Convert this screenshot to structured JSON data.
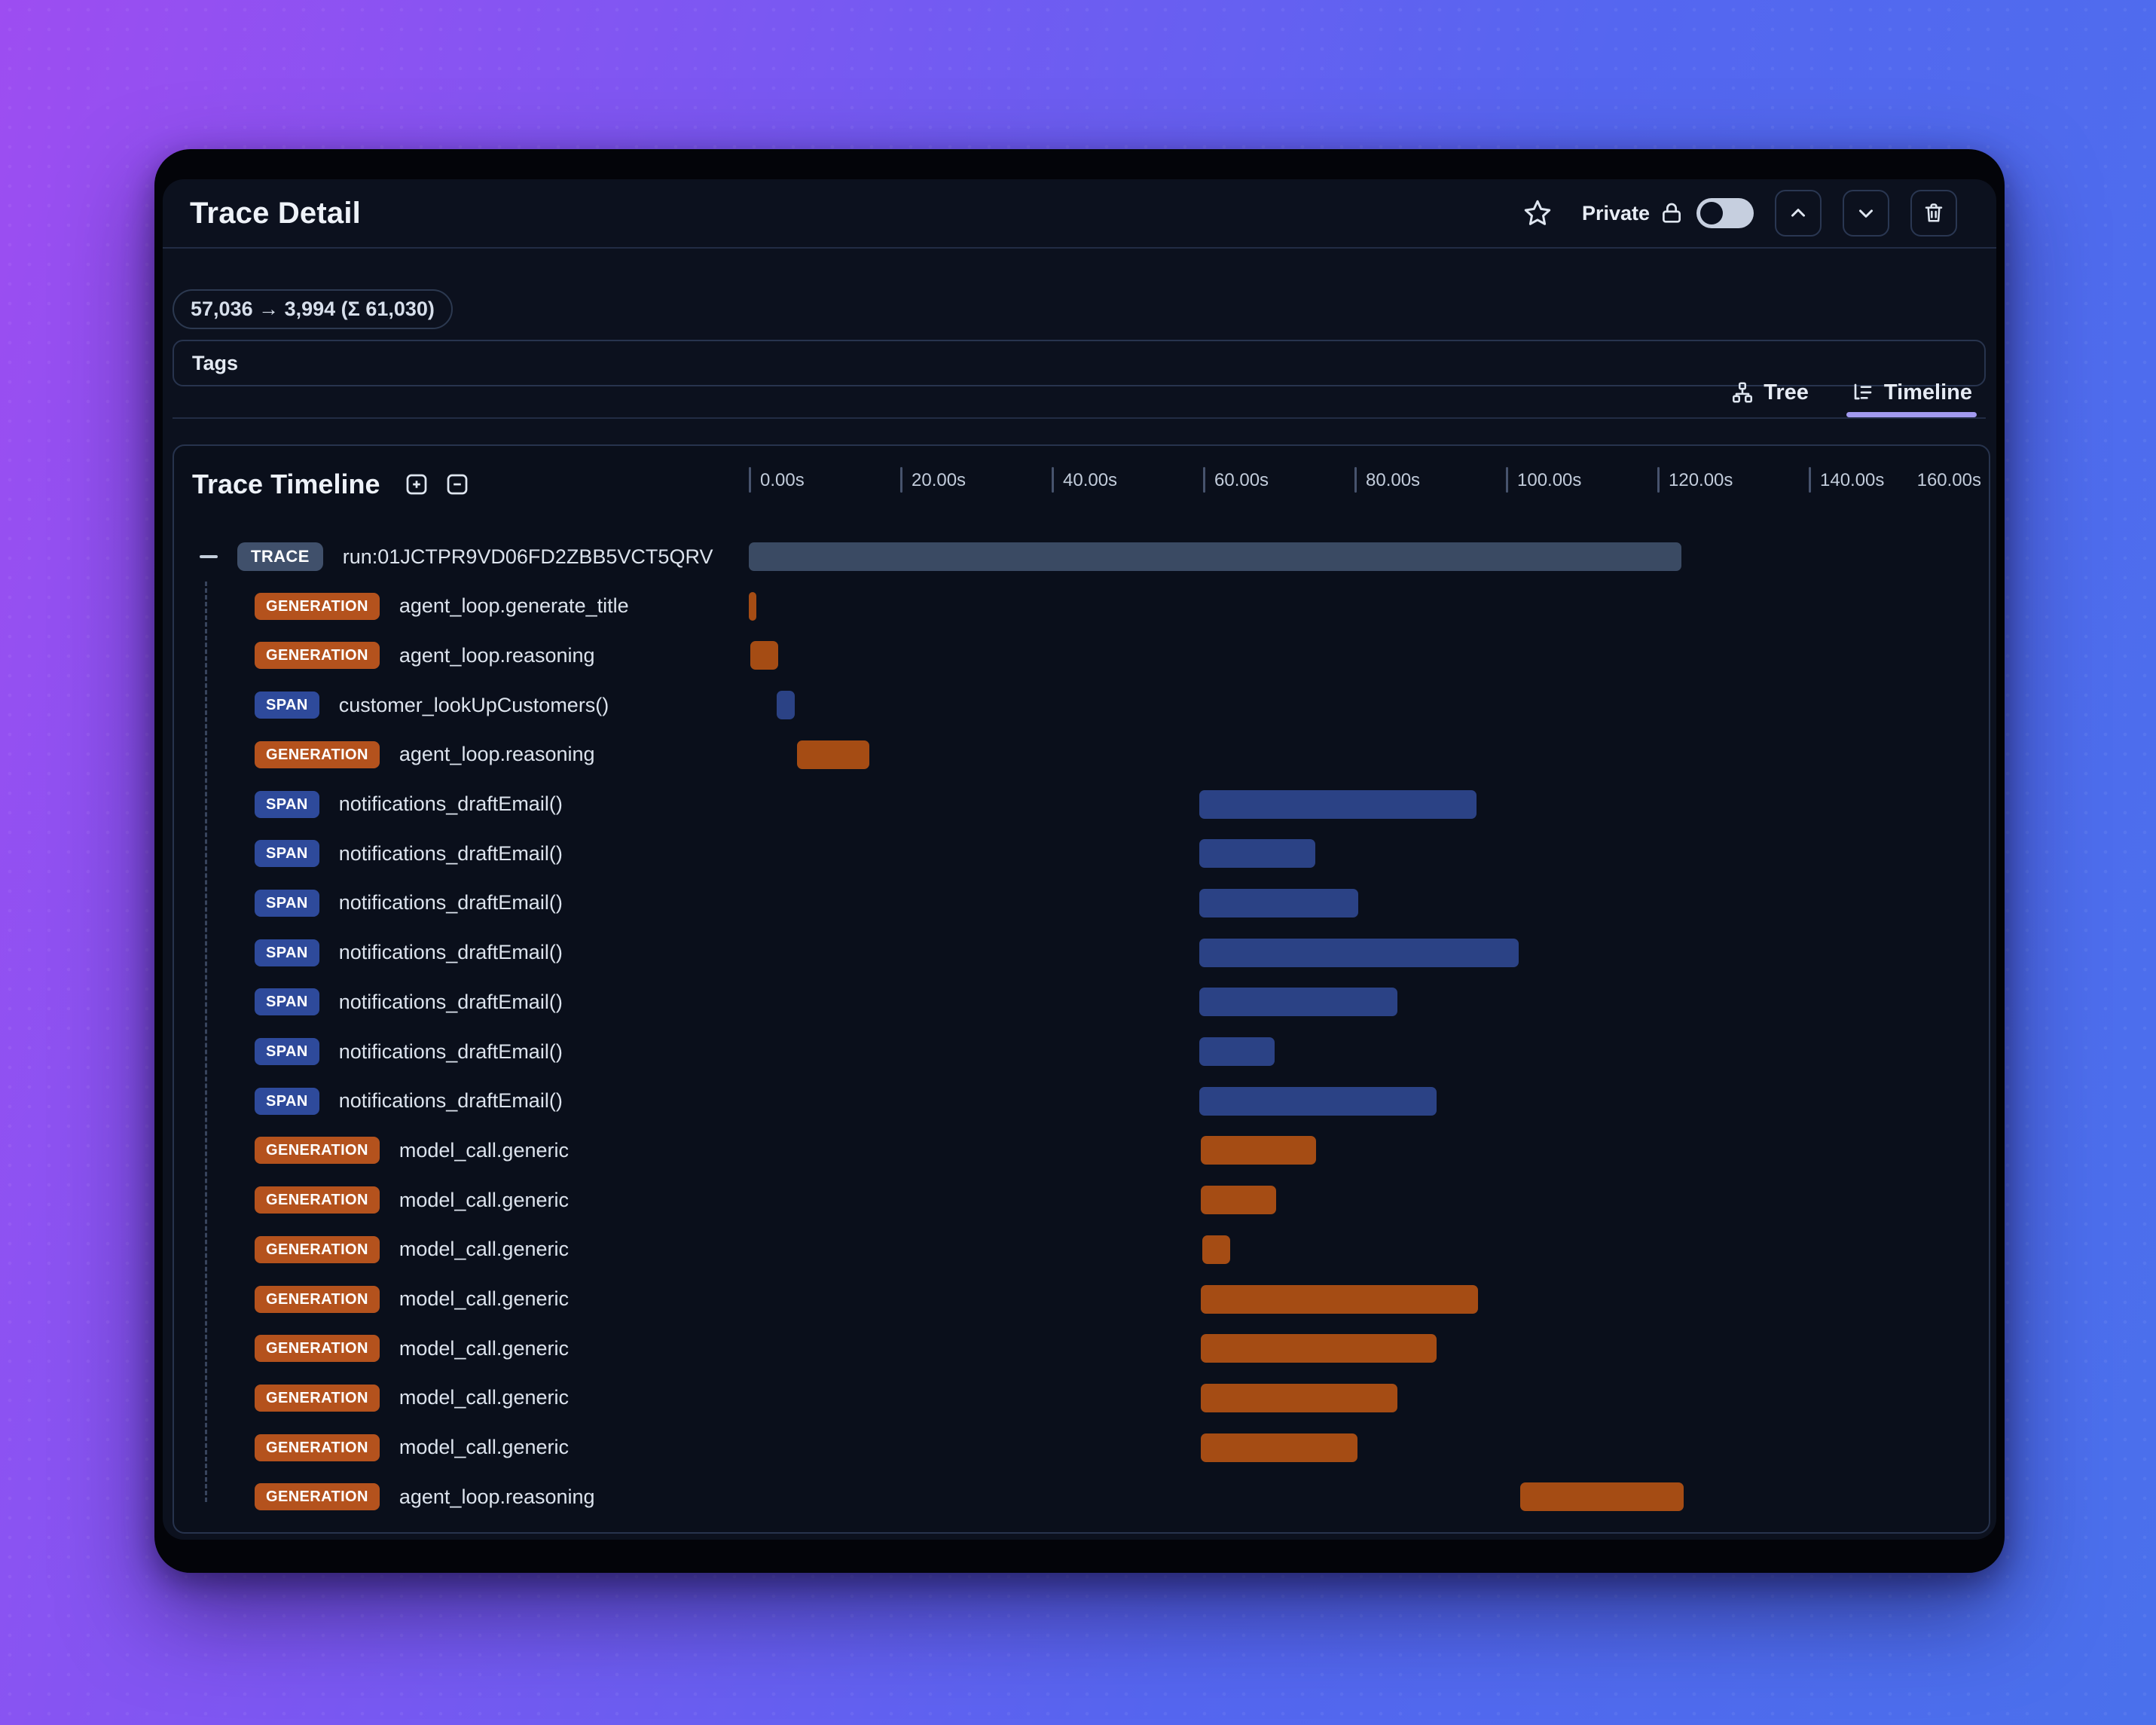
{
  "header": {
    "title": "Trace Detail",
    "privacy_label": "Private",
    "toggle_state": "off"
  },
  "token_usage": {
    "text": "57,036 → 3,994 (Σ 61,030)"
  },
  "tags": {
    "label": "Tags"
  },
  "view_tabs": {
    "tabs": [
      {
        "label": "Tree",
        "icon": "tree-icon",
        "active": false
      },
      {
        "label": "Timeline",
        "icon": "timeline-icon",
        "active": true
      }
    ]
  },
  "timeline": {
    "title": "Trace Timeline",
    "axis": {
      "tick_labels": [
        "0.00s",
        "20.00s",
        "40.00s",
        "60.00s",
        "80.00s",
        "100.00s",
        "120.00s",
        "140.00s"
      ],
      "end_label": "160.00s",
      "seconds_per_tick": 20,
      "range_s": [
        0,
        160
      ]
    },
    "rows": [
      {
        "type": "TRACE",
        "label": "run:01JCTPR9VD06FD2ZBB5VCT5QRV",
        "start_s": 0,
        "end_s": 123.2,
        "collapsible": true
      },
      {
        "type": "GENERATION",
        "label": "agent_loop.generate_title",
        "start_s": 0,
        "end_s": 1.0
      },
      {
        "type": "GENERATION",
        "label": "agent_loop.reasoning",
        "start_s": 0.2,
        "end_s": 3.9
      },
      {
        "type": "SPAN",
        "label": "customer_lookUpCustomers()",
        "start_s": 3.7,
        "end_s": 6.1
      },
      {
        "type": "GENERATION",
        "label": "agent_loop.reasoning",
        "start_s": 6.4,
        "end_s": 15.9
      },
      {
        "type": "SPAN",
        "label": "notifications_draftEmail()",
        "start_s": 59.5,
        "end_s": 96.1
      },
      {
        "type": "SPAN",
        "label": "notifications_draftEmail()",
        "start_s": 59.5,
        "end_s": 74.8
      },
      {
        "type": "SPAN",
        "label": "notifications_draftEmail()",
        "start_s": 59.5,
        "end_s": 80.5
      },
      {
        "type": "SPAN",
        "label": "notifications_draftEmail()",
        "start_s": 59.5,
        "end_s": 101.7
      },
      {
        "type": "SPAN",
        "label": "notifications_draftEmail()",
        "start_s": 59.5,
        "end_s": 85.7
      },
      {
        "type": "SPAN",
        "label": "notifications_draftEmail()",
        "start_s": 59.5,
        "end_s": 69.5
      },
      {
        "type": "SPAN",
        "label": "notifications_draftEmail()",
        "start_s": 59.5,
        "end_s": 90.8
      },
      {
        "type": "GENERATION",
        "label": "model_call.generic",
        "start_s": 59.7,
        "end_s": 74.9
      },
      {
        "type": "GENERATION",
        "label": "model_call.generic",
        "start_s": 59.7,
        "end_s": 69.7
      },
      {
        "type": "GENERATION",
        "label": "model_call.generic",
        "start_s": 59.9,
        "end_s": 63.6
      },
      {
        "type": "GENERATION",
        "label": "model_call.generic",
        "start_s": 59.7,
        "end_s": 96.3
      },
      {
        "type": "GENERATION",
        "label": "model_call.generic",
        "start_s": 59.7,
        "end_s": 90.8
      },
      {
        "type": "GENERATION",
        "label": "model_call.generic",
        "start_s": 59.7,
        "end_s": 85.7
      },
      {
        "type": "GENERATION",
        "label": "model_call.generic",
        "start_s": 59.7,
        "end_s": 80.4
      },
      {
        "type": "GENERATION",
        "label": "agent_loop.reasoning",
        "start_s": 101.9,
        "end_s": 123.5
      }
    ]
  },
  "colors": {
    "accent_underline": "#a29af0",
    "badge_trace": "#40506b",
    "badge_generation": "#b4521d",
    "badge_span": "#2e4a9b",
    "bar_trace": "#3a4a63",
    "bar_generation": "#a54c14",
    "bar_span": "#2b4285"
  }
}
